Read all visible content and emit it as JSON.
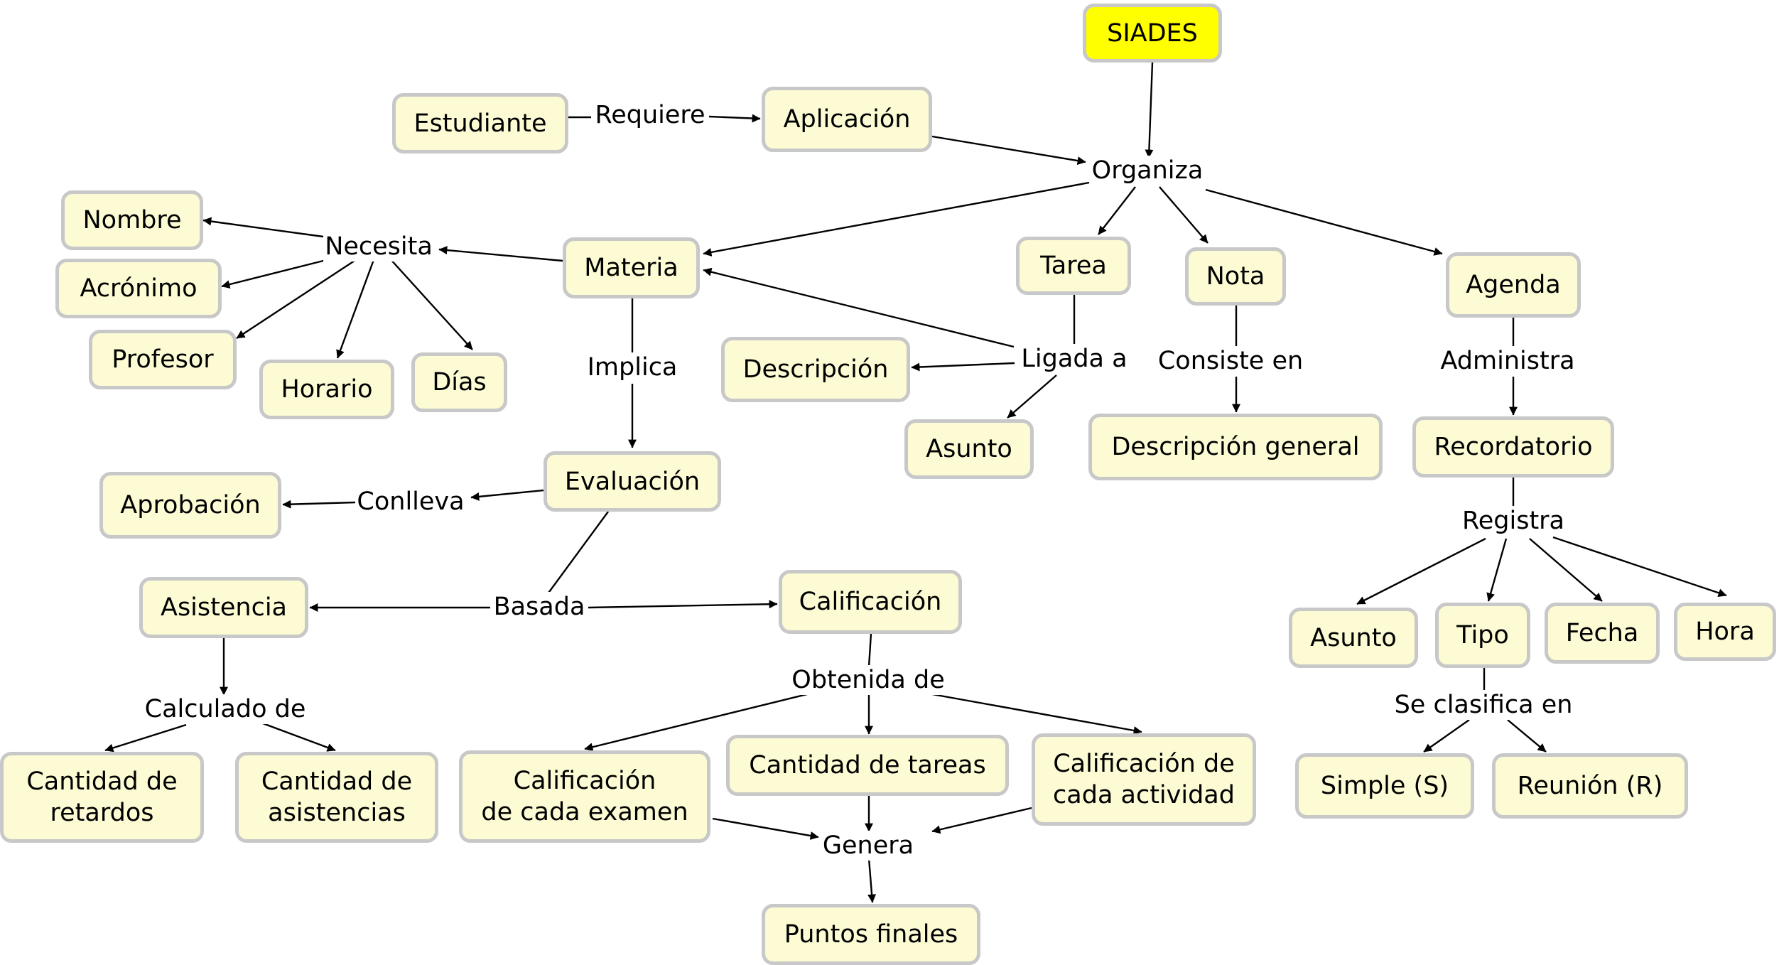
{
  "colors": {
    "node_fill": "#fcfbd4",
    "node_border": "#c8c8c8",
    "root_fill": "#ffff00",
    "line": "#000000"
  },
  "nodes": {
    "siades": "SIADES",
    "estudiante": "Estudiante",
    "aplicacion": "Aplicación",
    "materia": "Materia",
    "nombre": "Nombre",
    "acronimo": "Acrónimo",
    "profesor": "Profesor",
    "horario": "Horario",
    "dias": "Días",
    "tarea": "Tarea",
    "nota": "Nota",
    "agenda": "Agenda",
    "descripcion": "Descripción",
    "asunto_tarea": "Asunto",
    "descripcion_general": "Descripción general",
    "recordatorio": "Recordatorio",
    "evaluacion": "Evaluación",
    "aprobacion": "Aprobación",
    "asistencia": "Asistencia",
    "calificacion": "Calificación",
    "cantidad_retardos": "Cantidad de\nretardos",
    "cantidad_asistencias": "Cantidad de\nasistencias",
    "calif_examen": "Calificación\nde cada examen",
    "cantidad_tareas": "Cantidad de tareas",
    "calif_actividad": "Calificación de\ncada actividad",
    "puntos_finales": "Puntos finales",
    "asunto_rec": "Asunto",
    "tipo": "Tipo",
    "fecha": "Fecha",
    "hora": "Hora",
    "simple": "Simple (S)",
    "reunion": "Reunión (R)"
  },
  "links": {
    "requiere": "Requiere",
    "organiza": "Organiza",
    "necesita": "Necesita",
    "ligada_a": "Ligada a",
    "consiste_en": "Consiste en",
    "administra": "Administra",
    "implica": "Implica",
    "conlleva": "Conlleva",
    "basada": "Basada",
    "calculado_de": "Calculado de",
    "obtenida_de": "Obtenida de",
    "genera": "Genera",
    "registra": "Registra",
    "se_clasifica_en": "Se clasifica en"
  }
}
